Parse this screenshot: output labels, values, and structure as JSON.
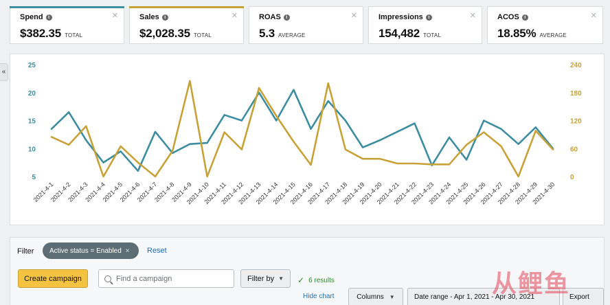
{
  "cards": [
    {
      "title": "Spend",
      "value": "$382.35",
      "unit": "TOTAL",
      "accent": "#3d8da0"
    },
    {
      "title": "Sales",
      "value": "$2,028.35",
      "unit": "TOTAL",
      "accent": "#c7a238"
    },
    {
      "title": "ROAS",
      "value": "5.3",
      "unit": "AVERAGE",
      "accent": ""
    },
    {
      "title": "Impressions",
      "value": "154,482",
      "unit": "TOTAL",
      "accent": ""
    },
    {
      "title": "ACOS",
      "value": "18.85%",
      "unit": "AVERAGE",
      "accent": ""
    }
  ],
  "icons": {
    "info": "info-icon",
    "close": "close-icon",
    "collapse": "double-chevron-left-icon",
    "search": "search-icon",
    "check": "checkmark-icon"
  },
  "chart_data": {
    "type": "line",
    "x": [
      "2021-4-1",
      "2021-4-2",
      "2021-4-3",
      "2021-4-4",
      "2021-4-5",
      "2021-4-6",
      "2021-4-7",
      "2021-4-8",
      "2021-4-9",
      "2021-4-10",
      "2021-4-11",
      "2021-4-12",
      "2021-4-13",
      "2021-4-14",
      "2021-4-15",
      "2021-4-16",
      "2021-4-17",
      "2021-4-18",
      "2021-4-19",
      "2021-4-20",
      "2021-4-21",
      "2021-4-22",
      "2021-4-23",
      "2021-4-24",
      "2021-4-25",
      "2021-4-26",
      "2021-4-27",
      "2021-4-28",
      "2021-4-29",
      "2021-4-30"
    ],
    "left_axis": {
      "ticks": [
        5,
        10,
        15,
        20,
        25
      ],
      "range": [
        5,
        25
      ],
      "color": "#3d8da0"
    },
    "right_axis": {
      "ticks": [
        0,
        60,
        120,
        180,
        240
      ],
      "range": [
        0,
        240
      ],
      "color": "#c7a238"
    },
    "series": [
      {
        "name": "Spend",
        "axis": "left",
        "color": "#3d8da0",
        "values": [
          13.5,
          16.5,
          11.5,
          7.5,
          9.5,
          6,
          13,
          9.2,
          10.8,
          11,
          16,
          15,
          20,
          15,
          20.5,
          13.5,
          18.5,
          15,
          10.2,
          11.5,
          13,
          14.5,
          7,
          12,
          8,
          15,
          13.5,
          10.8,
          13.8,
          10
        ]
      },
      {
        "name": "Sales",
        "axis": "right",
        "color": "#c7a238",
        "values": [
          85,
          68,
          108,
          0,
          65,
          30,
          0,
          55,
          205,
          0,
          95,
          58,
          190,
          130,
          75,
          25,
          200,
          58,
          38,
          38,
          28,
          28,
          26,
          26,
          68,
          95,
          65,
          0,
          98,
          58
        ]
      }
    ],
    "grid": false,
    "legend": "none"
  },
  "filter": {
    "label": "Filter",
    "chip_label": "Active status = Enabled",
    "chip_remove": "×",
    "reset_label": "Reset"
  },
  "toolbar": {
    "create_label": "Create campaign",
    "search_placeholder": "Find a campaign",
    "filter_by_label": "Filter by",
    "results_text": "6 results",
    "hide_chart_label": "Hide chart",
    "columns_label": "Columns",
    "date_range_label": "Date range - Apr 1, 2021 - Apr 30, 2021",
    "export_label": "Export"
  },
  "watermark": {
    "text": "从鲤鱼"
  }
}
